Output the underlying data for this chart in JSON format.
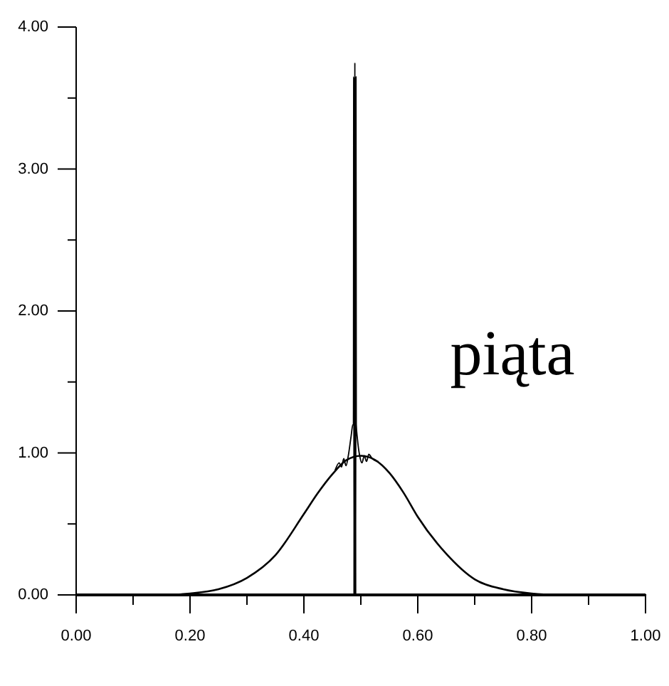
{
  "chart_data": {
    "type": "line",
    "series": [
      {
        "color": "#000000",
        "x": [
          0,
          0.1,
          0.15,
          0.2,
          0.25,
          0.3,
          0.35,
          0.4,
          0.425,
          0.45,
          0.475,
          0.5,
          0.525,
          0.55,
          0.575,
          0.6,
          0.65,
          0.7,
          0.75,
          0.8,
          0.85,
          0.9,
          1
        ],
        "values": [
          0,
          0,
          0,
          0.01,
          0.04,
          0.12,
          0.28,
          0.57,
          0.72,
          0.85,
          0.95,
          0.98,
          0.95,
          0.86,
          0.72,
          0.55,
          0.29,
          0.11,
          0.04,
          0.01,
          0,
          0,
          0
        ]
      },
      {
        "color": "#000000",
        "x": [
          0.455,
          0.462,
          0.466,
          0.47,
          0.474,
          0.478,
          0.483,
          0.486,
          0.487,
          0.4875,
          0.488,
          0.4885,
          0.489,
          0.4895,
          0.49,
          0.4905,
          0.491,
          0.4915,
          0.492,
          0.494,
          0.498,
          0.502,
          0.506,
          0.51,
          0.514,
          0.52,
          0.53
        ],
        "values": [
          0.88,
          0.93,
          0.9,
          0.96,
          0.91,
          0.98,
          1.12,
          1.2,
          1.2,
          3.65,
          0,
          3.65,
          0,
          3.75,
          0,
          3.65,
          0,
          3.65,
          1.2,
          1.1,
          0.98,
          0.93,
          0.98,
          0.94,
          0.99,
          0.96,
          0.94
        ]
      }
    ],
    "xlim": [
      0,
      1
    ],
    "ylim": [
      0,
      4
    ],
    "xticks": [
      {
        "value": 0,
        "label": "0.00"
      },
      {
        "value": 0.1,
        "label": null
      },
      {
        "value": 0.2,
        "label": "0.20"
      },
      {
        "value": 0.3,
        "label": null
      },
      {
        "value": 0.4,
        "label": "0.40"
      },
      {
        "value": 0.5,
        "label": null
      },
      {
        "value": 0.6,
        "label": "0.60"
      },
      {
        "value": 0.7,
        "label": null
      },
      {
        "value": 0.8,
        "label": "0.80"
      },
      {
        "value": 0.9,
        "label": null
      },
      {
        "value": 1,
        "label": "1.00"
      }
    ],
    "yticks": [
      {
        "value": 0,
        "label": "0.00"
      },
      {
        "value": 0.5,
        "label": null
      },
      {
        "value": 1,
        "label": "1.00"
      },
      {
        "value": 1.5,
        "label": null
      },
      {
        "value": 2,
        "label": "2.00"
      },
      {
        "value": 2.5,
        "label": null
      },
      {
        "value": 3,
        "label": "3.00"
      },
      {
        "value": 3.5,
        "label": null
      },
      {
        "value": 4,
        "label": "4.00"
      }
    ],
    "annotations": [
      "piąta"
    ]
  }
}
